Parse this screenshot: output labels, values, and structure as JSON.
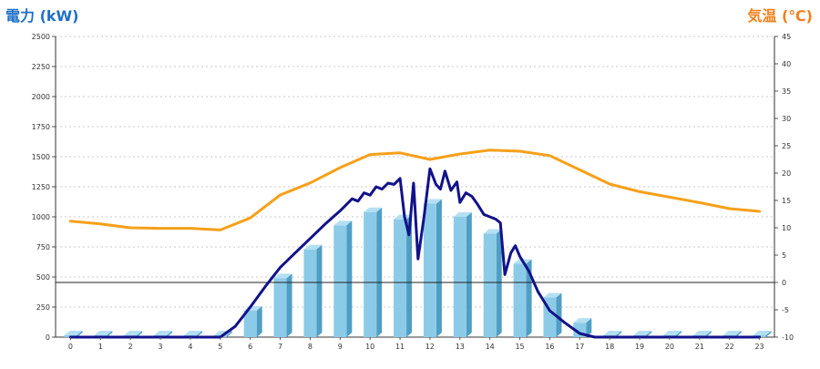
{
  "chart_data": {
    "type": "bar",
    "left_axis_title": "電力 (kW)",
    "right_axis_title": "気温 (℃)",
    "categories": [
      "0",
      "1",
      "2",
      "3",
      "4",
      "5",
      "6",
      "7",
      "8",
      "9",
      "10",
      "11",
      "12",
      "13",
      "14",
      "15",
      "16",
      "17",
      "18",
      "19",
      "20",
      "21",
      "22",
      "23"
    ],
    "left_ticks": [
      "0",
      "250",
      "500",
      "750",
      "1000",
      "1250",
      "1500",
      "1750",
      "2000",
      "2250",
      "2500"
    ],
    "right_ticks": [
      "-10",
      "-5",
      "0",
      "5",
      "10",
      "15",
      "20",
      "25",
      "30",
      "35",
      "40",
      "45"
    ],
    "left_ylim": [
      0,
      2500
    ],
    "right_ylim": [
      -10,
      45
    ],
    "reference_line_value_right": 0,
    "grid": "horizontal dashed",
    "series": [
      {
        "type": "bar",
        "axis": "left",
        "values": [
          15,
          15,
          15,
          15,
          15,
          15,
          220,
          490,
          730,
          930,
          1040,
          980,
          1110,
          1000,
          860,
          610,
          330,
          120,
          15,
          15,
          15,
          15,
          15,
          15
        ],
        "color": "#8ccbe8",
        "color_top": "#b4e0f3",
        "color_side": "#4f9ec4"
      },
      {
        "type": "line",
        "axis": "left",
        "color": "#12128a",
        "x": [
          0,
          1,
          2,
          3,
          4,
          5,
          5.5,
          6,
          6.5,
          7,
          7.5,
          8,
          8.5,
          9,
          9.2,
          9.4,
          9.6,
          9.8,
          10,
          10.2,
          10.4,
          10.6,
          10.8,
          11,
          11.15,
          11.3,
          11.45,
          11.6,
          11.8,
          12,
          12.2,
          12.35,
          12.5,
          12.7,
          12.9,
          13,
          13.2,
          13.4,
          13.6,
          13.8,
          14,
          14.2,
          14.35,
          14.5,
          14.7,
          14.85,
          15,
          15.3,
          15.6,
          16,
          16.5,
          17,
          17.5,
          18,
          19,
          20,
          21,
          22,
          23
        ],
        "values": [
          0,
          0,
          0,
          0,
          0,
          0,
          90,
          250,
          420,
          580,
          700,
          820,
          940,
          1050,
          1100,
          1150,
          1130,
          1200,
          1180,
          1250,
          1230,
          1280,
          1270,
          1320,
          1000,
          850,
          1280,
          650,
          1000,
          1400,
          1270,
          1230,
          1380,
          1220,
          1290,
          1120,
          1200,
          1170,
          1100,
          1020,
          1000,
          980,
          950,
          520,
          700,
          760,
          670,
          550,
          380,
          220,
          120,
          30,
          0,
          0,
          0,
          0,
          0,
          0,
          0
        ]
      },
      {
        "type": "line",
        "axis": "right",
        "color": "#f5a01a",
        "x": [
          0,
          1,
          2,
          3,
          4,
          5,
          6,
          7,
          8,
          9,
          10,
          11,
          12,
          13,
          14,
          15,
          16,
          17,
          18,
          19,
          20,
          21,
          22,
          23
        ],
        "values": [
          11.2,
          10.7,
          10.0,
          9.9,
          9.9,
          9.6,
          11.8,
          16.0,
          18.2,
          21.0,
          23.4,
          23.7,
          22.5,
          23.5,
          24.2,
          24.0,
          23.2,
          20.6,
          18.0,
          16.6,
          15.6,
          14.6,
          13.5,
          13.0
        ]
      }
    ]
  }
}
